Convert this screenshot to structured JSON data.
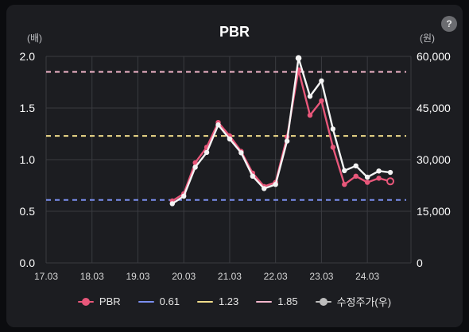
{
  "help_label": "?",
  "chart_data": {
    "type": "line",
    "title": "PBR",
    "left_unit": "(배)",
    "right_unit": "(원)",
    "x_ticks": [
      "17.03",
      "18.03",
      "19.03",
      "20.03",
      "21.03",
      "22.03",
      "23.03",
      "24.03"
    ],
    "y_left": {
      "ticks": [
        "0.0",
        "0.5",
        "1.0",
        "1.5",
        "2.0"
      ],
      "min": 0,
      "max": 2.0
    },
    "y_right": {
      "ticks": [
        "0",
        "15,000",
        "30,000",
        "45,000",
        "60,000"
      ],
      "min": 0,
      "max": 60000
    },
    "x_range": [
      2017.0,
      2024.95
    ],
    "reference_lines": [
      {
        "name": "0.61",
        "value": 0.61,
        "color": "#7b8ff0"
      },
      {
        "name": "1.23",
        "value": 1.23,
        "color": "#f0dc8a"
      },
      {
        "name": "1.85",
        "value": 1.85,
        "color": "#f3b6cc"
      }
    ],
    "series": [
      {
        "name": "PBR",
        "axis": "left",
        "color": "#e8577a",
        "x": [
          2019.75,
          2020.0,
          2020.25,
          2020.5,
          2020.75,
          2021.0,
          2021.25,
          2021.5,
          2021.75,
          2022.0,
          2022.25,
          2022.5,
          2022.75,
          2023.0,
          2023.25,
          2023.5,
          2023.75,
          2024.0,
          2024.25,
          2024.5
        ],
        "y": [
          0.6,
          0.67,
          0.97,
          1.12,
          1.36,
          1.23,
          1.08,
          0.87,
          0.74,
          0.78,
          1.22,
          1.87,
          1.43,
          1.57,
          1.12,
          0.76,
          0.84,
          0.78,
          0.82,
          0.79
        ]
      },
      {
        "name": "수정주가(우)",
        "axis": "right",
        "color": "#f4f4f4",
        "x": [
          2019.75,
          2020.0,
          2020.25,
          2020.5,
          2020.75,
          2021.0,
          2021.25,
          2021.5,
          2021.75,
          2022.0,
          2022.25,
          2022.5,
          2022.75,
          2023.0,
          2023.25,
          2023.5,
          2023.75,
          2024.0,
          2024.25,
          2024.5
        ],
        "y": [
          17200,
          19400,
          27800,
          32100,
          40100,
          36000,
          32000,
          25200,
          21600,
          22800,
          35400,
          59500,
          48400,
          52900,
          38900,
          26800,
          28200,
          24900,
          26700,
          26300
        ]
      }
    ],
    "legend": [
      "PBR",
      "0.61",
      "1.23",
      "1.85",
      "수정주가(우)"
    ]
  }
}
